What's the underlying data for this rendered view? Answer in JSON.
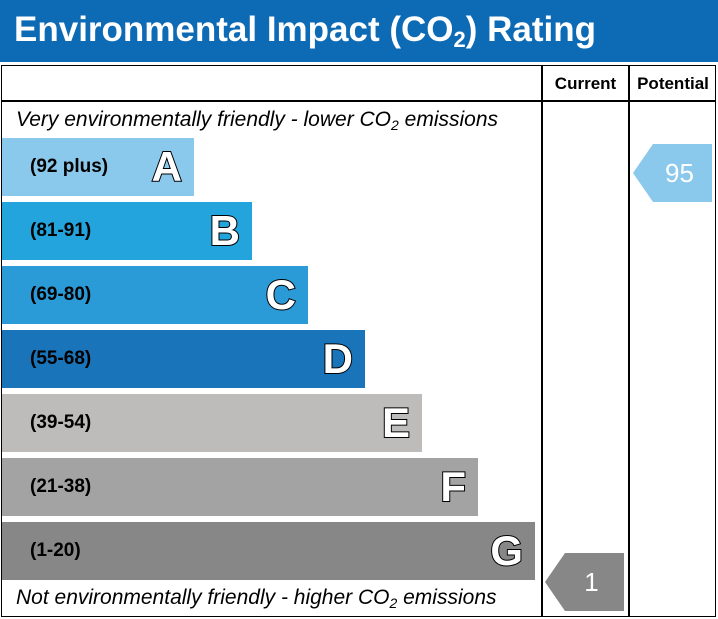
{
  "header": {
    "title_pre": "Environmental Impact (CO",
    "title_sub": "2",
    "title_post": ") Rating",
    "background": "#0d6ab4"
  },
  "columns": {
    "current": "Current",
    "potential": "Potential"
  },
  "notes": {
    "top_pre": "Very environmentally friendly - lower CO",
    "top_sub": "2",
    "top_post": " emissions",
    "bottom_pre": "Not environmentally friendly - higher CO",
    "bottom_sub": "2",
    "bottom_post": " emissions"
  },
  "chart_data": {
    "type": "table",
    "bands": [
      {
        "letter": "A",
        "range": "(92 plus)",
        "color": "#8ac8ec"
      },
      {
        "letter": "B",
        "range": "(81-91)",
        "color": "#24a4dd"
      },
      {
        "letter": "C",
        "range": "(69-80)",
        "color": "#2a9bd7"
      },
      {
        "letter": "D",
        "range": "(55-68)",
        "color": "#1a74b9"
      },
      {
        "letter": "E",
        "range": "(39-54)",
        "color": "#bdbcbb"
      },
      {
        "letter": "F",
        "range": "(21-38)",
        "color": "#a3a3a3"
      },
      {
        "letter": "G",
        "range": "(1-20)",
        "color": "#878787"
      }
    ],
    "current": {
      "value": "1",
      "band": "G",
      "color": "#878787"
    },
    "potential": {
      "value": "95",
      "band": "A",
      "color": "#8ac8ec"
    }
  }
}
